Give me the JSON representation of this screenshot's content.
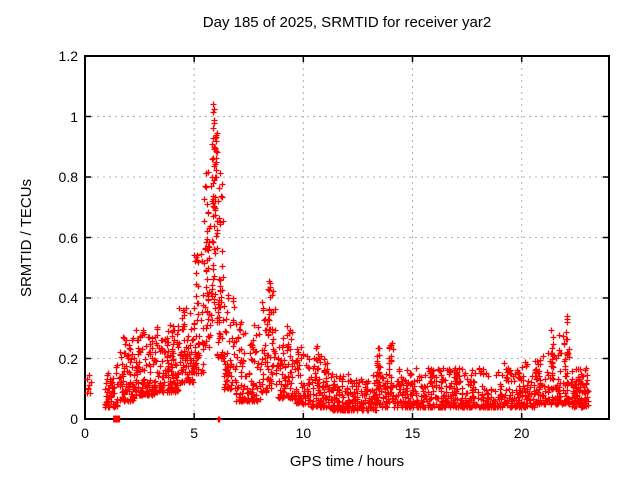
{
  "figure": {
    "background_color": "#ffffff",
    "text_color": "#000000"
  },
  "chart_data": {
    "type": "scatter",
    "title": "Day 185 of 2025, SRMTID for receiver yar2",
    "xlabel": "GPS time / hours",
    "ylabel": "SRMTID / TECUs",
    "xlim": [
      0,
      24
    ],
    "ylim": [
      0,
      1.2
    ],
    "xticks": [
      0,
      5,
      10,
      15,
      20
    ],
    "xtick_labels": [
      "0",
      "5",
      "10",
      "15",
      "20"
    ],
    "yticks": [
      0,
      0.2,
      0.4,
      0.6,
      0.8,
      1,
      1.2
    ],
    "ytick_labels": [
      "0",
      "0.2",
      "0.4",
      "0.6",
      "0.8",
      "1",
      "1.2"
    ],
    "grid": true,
    "grid_color": "#b0b0b0",
    "border_color": "#000000",
    "legend_position": "none",
    "marker": {
      "shape": "plus",
      "color": "#ff0000",
      "size": 7
    },
    "observed_peak": {
      "x": 5.86,
      "y": 1.04
    },
    "data_time_range_hours": [
      0,
      23.1
    ],
    "density_segments": [
      {
        "x0": 0.02,
        "x1": 0.32,
        "n": 9,
        "ymin": 0.07,
        "ymax": 0.15,
        "skew": 1.0
      },
      {
        "x0": 0.88,
        "x1": 1.55,
        "n": 55,
        "ymin": 0.04,
        "ymax": 0.19,
        "skew": 1.6
      },
      {
        "x0": 1.55,
        "x1": 2.3,
        "n": 85,
        "ymin": 0.06,
        "ymax": 0.27,
        "skew": 1.8
      },
      {
        "x0": 2.3,
        "x1": 3.2,
        "n": 110,
        "ymin": 0.08,
        "ymax": 0.3,
        "skew": 2.0
      },
      {
        "x0": 3.2,
        "x1": 4.3,
        "n": 130,
        "ymin": 0.09,
        "ymax": 0.31,
        "skew": 1.8
      },
      {
        "x0": 4.3,
        "x1": 5.0,
        "n": 80,
        "ymin": 0.12,
        "ymax": 0.38,
        "skew": 1.7
      },
      {
        "x0": 5.0,
        "x1": 5.45,
        "n": 55,
        "ymin": 0.15,
        "ymax": 0.55,
        "skew": 1.5
      },
      {
        "x0": 5.45,
        "x1": 5.8,
        "n": 45,
        "ymin": 0.22,
        "ymax": 0.82,
        "skew": 1.2
      },
      {
        "x0": 5.8,
        "x1": 6.05,
        "n": 40,
        "ymin": 0.3,
        "ymax": 0.95,
        "skew": 1.2
      },
      {
        "x0": 6.05,
        "x1": 6.35,
        "n": 40,
        "ymin": 0.2,
        "ymax": 0.8,
        "skew": 1.5
      },
      {
        "x0": 6.35,
        "x1": 6.9,
        "n": 60,
        "ymin": 0.1,
        "ymax": 0.42,
        "skew": 1.8
      },
      {
        "x0": 6.9,
        "x1": 8.05,
        "n": 115,
        "ymin": 0.06,
        "ymax": 0.33,
        "skew": 2.0
      },
      {
        "x0": 8.05,
        "x1": 8.75,
        "n": 70,
        "ymin": 0.09,
        "ymax": 0.44,
        "skew": 1.7
      },
      {
        "x0": 8.75,
        "x1": 9.6,
        "n": 80,
        "ymin": 0.07,
        "ymax": 0.31,
        "skew": 1.8
      },
      {
        "x0": 9.6,
        "x1": 10.35,
        "n": 70,
        "ymin": 0.05,
        "ymax": 0.24,
        "skew": 1.8
      },
      {
        "x0": 10.35,
        "x1": 11.2,
        "n": 85,
        "ymin": 0.04,
        "ymax": 0.21,
        "skew": 2.0
      },
      {
        "x0": 11.2,
        "x1": 13.35,
        "n": 210,
        "ymin": 0.03,
        "ymax": 0.15,
        "skew": 1.8
      },
      {
        "x0": 13.35,
        "x1": 13.55,
        "n": 22,
        "ymin": 0.05,
        "ymax": 0.26,
        "skew": 1.2
      },
      {
        "x0": 13.55,
        "x1": 13.9,
        "n": 30,
        "ymin": 0.04,
        "ymax": 0.15,
        "skew": 1.8
      },
      {
        "x0": 13.9,
        "x1": 14.1,
        "n": 20,
        "ymin": 0.05,
        "ymax": 0.26,
        "skew": 1.2
      },
      {
        "x0": 14.1,
        "x1": 19.0,
        "n": 430,
        "ymin": 0.04,
        "ymax": 0.17,
        "skew": 2.0
      },
      {
        "x0": 19.0,
        "x1": 20.6,
        "n": 140,
        "ymin": 0.04,
        "ymax": 0.19,
        "skew": 1.9
      },
      {
        "x0": 20.6,
        "x1": 21.55,
        "n": 90,
        "ymin": 0.05,
        "ymax": 0.22,
        "skew": 1.8
      },
      {
        "x0": 21.55,
        "x1": 22.25,
        "n": 75,
        "ymin": 0.05,
        "ymax": 0.28,
        "skew": 1.8
      },
      {
        "x0": 22.25,
        "x1": 23.1,
        "n": 115,
        "ymin": 0.04,
        "ymax": 0.17,
        "skew": 1.6
      }
    ],
    "columns": [
      {
        "x": 4.02,
        "y0": 0.15,
        "y1": 0.34,
        "n": 8
      },
      {
        "x": 5.62,
        "y0": 0.35,
        "y1": 0.78,
        "n": 10
      },
      {
        "x": 5.87,
        "y0": 0.45,
        "y1": 1.04,
        "n": 12
      },
      {
        "x": 5.99,
        "y0": 0.5,
        "y1": 0.9,
        "n": 8
      },
      {
        "x": 6.15,
        "y0": 0.3,
        "y1": 0.85,
        "n": 8
      },
      {
        "x": 8.42,
        "y0": 0.2,
        "y1": 0.46,
        "n": 9
      },
      {
        "x": 9.3,
        "y0": 0.1,
        "y1": 0.3,
        "n": 6
      },
      {
        "x": 10.62,
        "y0": 0.1,
        "y1": 0.28,
        "n": 6
      },
      {
        "x": 13.45,
        "y0": 0.08,
        "y1": 0.27,
        "n": 7
      },
      {
        "x": 13.97,
        "y0": 0.08,
        "y1": 0.26,
        "n": 6
      },
      {
        "x": 21.38,
        "y0": 0.1,
        "y1": 0.33,
        "n": 8
      },
      {
        "x": 22.05,
        "y0": 0.1,
        "y1": 0.35,
        "n": 8
      }
    ],
    "peak_points": [
      [
        5.86,
        1.04
      ],
      [
        5.89,
        0.99
      ],
      [
        5.84,
        0.93
      ],
      [
        5.91,
        0.9
      ],
      [
        5.8,
        0.86
      ],
      [
        5.95,
        0.8
      ],
      [
        5.83,
        0.8
      ],
      [
        8.45,
        0.455
      ],
      [
        8.38,
        0.43
      ]
    ],
    "zero_points": [
      [
        6.07,
        0
      ],
      [
        6.14,
        0
      ]
    ],
    "square_point": [
      1.45,
      0
    ]
  }
}
